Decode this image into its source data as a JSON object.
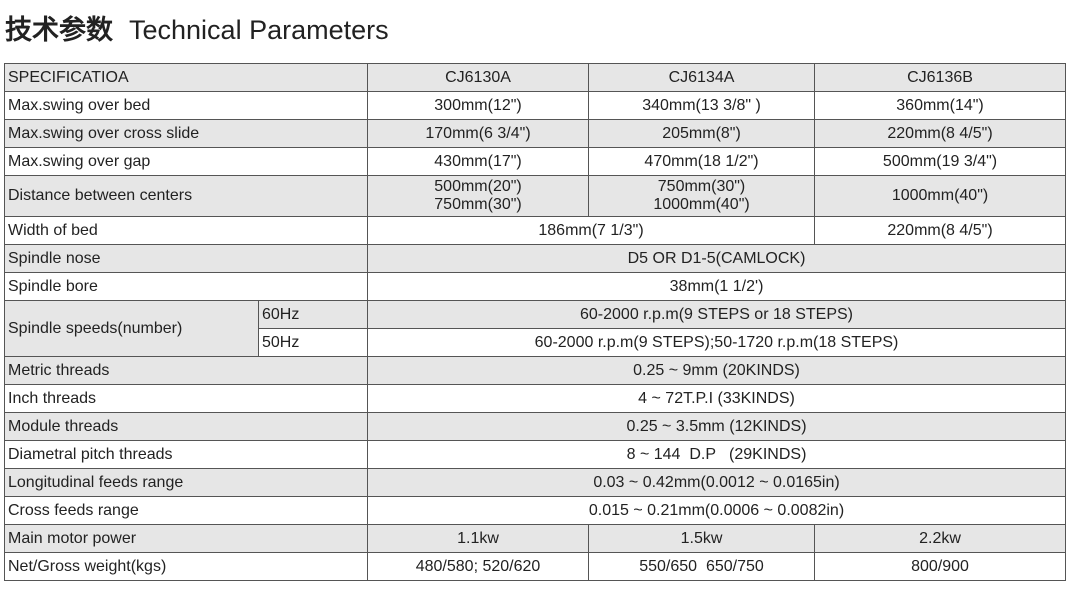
{
  "title": {
    "cn": "技术参数",
    "en": "Technical Parameters"
  },
  "table": {
    "header": [
      "SPECIFICATIOA",
      "CJ6130A",
      "CJ6134A",
      "CJ6136B"
    ],
    "swing_bed": [
      "Max.swing over bed",
      "300mm(12\")",
      "340mm(13 3/8\" )",
      "360mm(14\")"
    ],
    "swing_cross": [
      "Max.swing over cross slide",
      "170mm(6 3/4\")",
      "205mm(8\")",
      "220mm(8 4/5\")"
    ],
    "swing_gap": [
      "Max.swing over gap",
      "430mm(17\")",
      "470mm(18 1/2\")",
      "500mm(19 3/4\")"
    ],
    "centers": {
      "label": "Distance between centers",
      "a1": "500mm(20\")",
      "a2": "750mm(30\")",
      "b1": "750mm(30\")",
      "b2": "1000mm(40\")",
      "c": "1000mm(40\")"
    },
    "bed_width": [
      "Width of bed",
      "186mm(7 1/3\")",
      "220mm(8 4/5\")"
    ],
    "spindle_nose": [
      "Spindle nose",
      "D5 OR D1-5(CAMLOCK)"
    ],
    "spindle_bore": [
      "Spindle bore",
      "38mm(1 1/2')"
    ],
    "spindle_speeds": {
      "label": "Spindle speeds(number)",
      "f60": "60Hz",
      "v60": "60-2000 r.p.m(9 STEPS or 18 STEPS)",
      "f50": "50Hz",
      "v50": "60-2000 r.p.m(9 STEPS);50-1720 r.p.m(18 STEPS)"
    },
    "metric": [
      "Metric threads",
      "0.25 ~ 9mm  (20KINDS)"
    ],
    "inch": [
      "Inch threads",
      "4 ~ 72T.P.I  (33KINDS)"
    ],
    "module": [
      "Module threads",
      "0.25 ~ 3.5mm  (12KINDS)"
    ],
    "diametral": [
      "Diametral pitch threads",
      "8 ~ 144  D.P   (29KINDS)"
    ],
    "long_feeds": [
      "Longitudinal feeds range",
      "0.03 ~ 0.42mm(0.0012 ~ 0.0165in)"
    ],
    "cross_feeds": [
      "Cross feeds range",
      "0.015 ~ 0.21mm(0.0006 ~ 0.0082in)"
    ],
    "motor": [
      "Main motor power",
      "1.1kw",
      "1.5kw",
      "2.2kw"
    ],
    "weight": [
      "Net/Gross weight(kgs)",
      "480/580; 520/620",
      "550/650  650/750",
      "800/900"
    ]
  }
}
